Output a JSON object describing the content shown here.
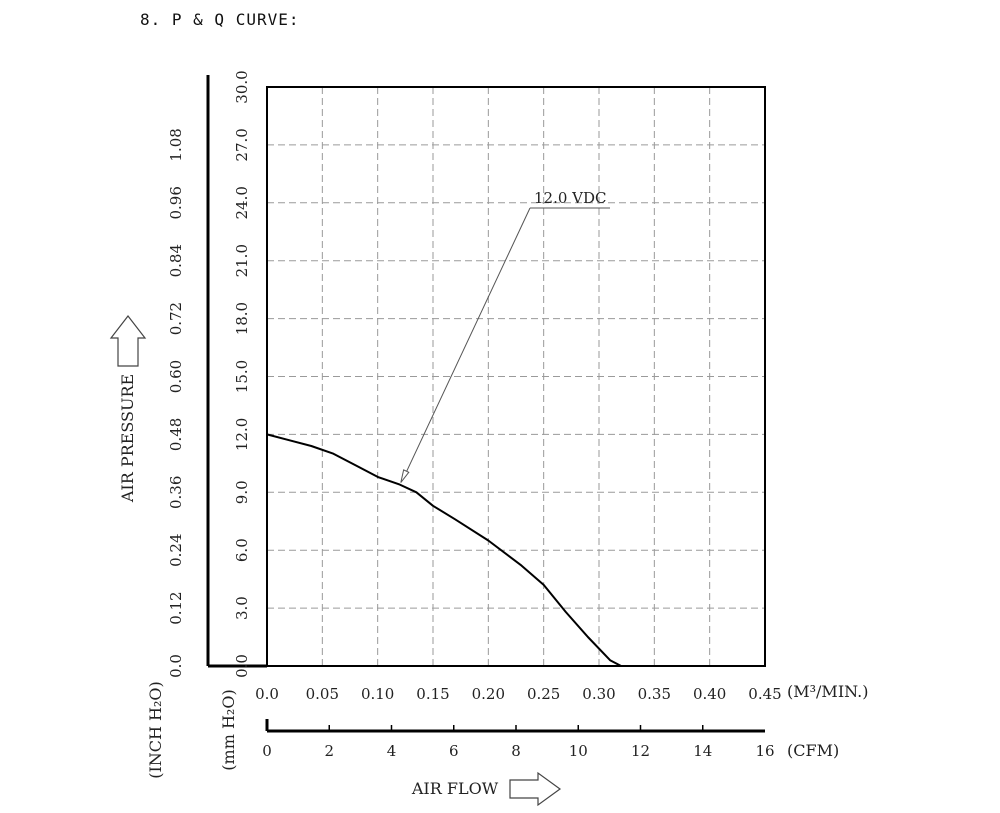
{
  "page": {
    "heading": "8. P & Q CURVE:"
  },
  "chart_data": {
    "type": "line",
    "title": "8. P & Q CURVE:",
    "ylabel": "AIR PRESSURE",
    "xlabel": "AIR FLOW",
    "y_mm_unit": "(mm H₂O)",
    "y_inch_unit": "(INCH H₂O)",
    "x_m3_unit": "(M³/MIN.)",
    "x_cfm_unit": "(CFM)",
    "xlim": [
      0,
      0.45
    ],
    "ylim": [
      0,
      30
    ],
    "grid": true,
    "y_mm_ticks": [
      "0.0",
      "3.0",
      "6.0",
      "9.0",
      "12.0",
      "15.0",
      "18.0",
      "21.0",
      "24.0",
      "27.0",
      "30.0"
    ],
    "y_inch_ticks": [
      "0.0",
      "0.12",
      "0.24",
      "0.36",
      "0.48",
      "0.60",
      "0.72",
      "0.84",
      "0.96",
      "1.08"
    ],
    "x_m3_ticks": [
      "0.0",
      "0.05",
      "0.10",
      "0.15",
      "0.20",
      "0.25",
      "0.30",
      "0.35",
      "0.40",
      "0.45"
    ],
    "x_cfm_ticks": [
      "0",
      "2",
      "4",
      "6",
      "8",
      "10",
      "12",
      "14",
      "16"
    ],
    "series": [
      {
        "name": "12.0 VDC",
        "x": [
          0.0,
          0.02,
          0.04,
          0.06,
          0.08,
          0.1,
          0.12,
          0.135,
          0.15,
          0.17,
          0.2,
          0.23,
          0.25,
          0.27,
          0.29,
          0.31,
          0.32
        ],
        "y": [
          12.0,
          11.7,
          11.4,
          11.0,
          10.4,
          9.8,
          9.4,
          9.0,
          8.3,
          7.6,
          6.5,
          5.2,
          4.2,
          2.8,
          1.5,
          0.3,
          0.0
        ]
      }
    ],
    "annotations": [
      {
        "text": "12.0 VDC",
        "target_x": 0.12,
        "target_y": 9.4
      }
    ]
  }
}
